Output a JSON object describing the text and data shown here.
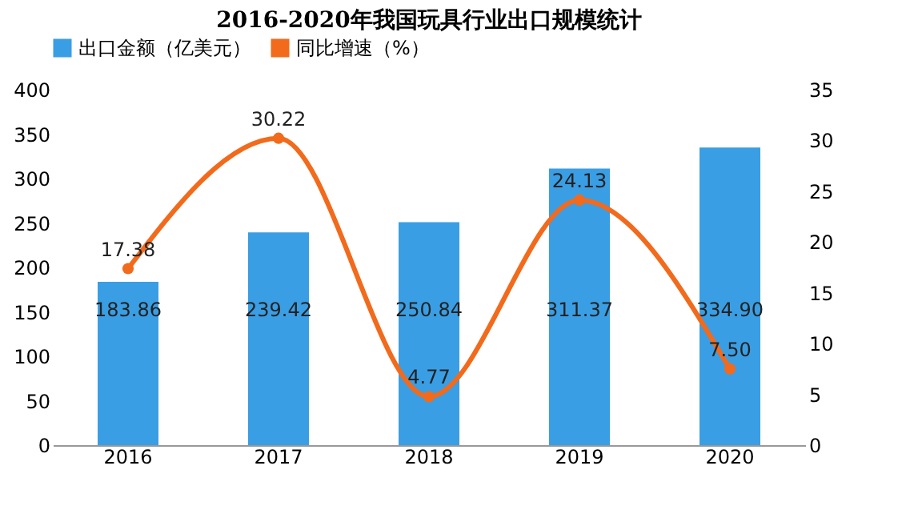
{
  "chart_data": {
    "type": "bar",
    "title": "2016-2020年我国玩具行业出口规模统计",
    "categories": [
      "2016",
      "2017",
      "2018",
      "2019",
      "2020"
    ],
    "series": [
      {
        "name": "出口金额（亿美元）",
        "color": "#3a9ee4",
        "values": [
          183.86,
          239.42,
          250.84,
          311.37,
          334.9
        ]
      },
      {
        "name": "同比增速（%）",
        "type": "line",
        "axis": "y2",
        "color": "#f26a1b",
        "values": [
          17.38,
          30.22,
          4.77,
          24.13,
          7.5
        ]
      }
    ],
    "value_labels": [
      [
        "183.86",
        "239.42",
        "250.84",
        "311.37",
        "334.90"
      ],
      [
        "17.38",
        "30.22",
        "4.77",
        "24.13",
        "7.50"
      ]
    ],
    "ylim": [
      0,
      400
    ],
    "yticks": [
      0,
      50,
      100,
      150,
      200,
      250,
      300,
      350,
      400
    ],
    "y2lim": [
      0,
      35
    ],
    "y2ticks": [
      0,
      5,
      10,
      15,
      20,
      25,
      30,
      35
    ],
    "grid": false,
    "legend": "top",
    "marker": "circle",
    "line_style": "solid"
  }
}
